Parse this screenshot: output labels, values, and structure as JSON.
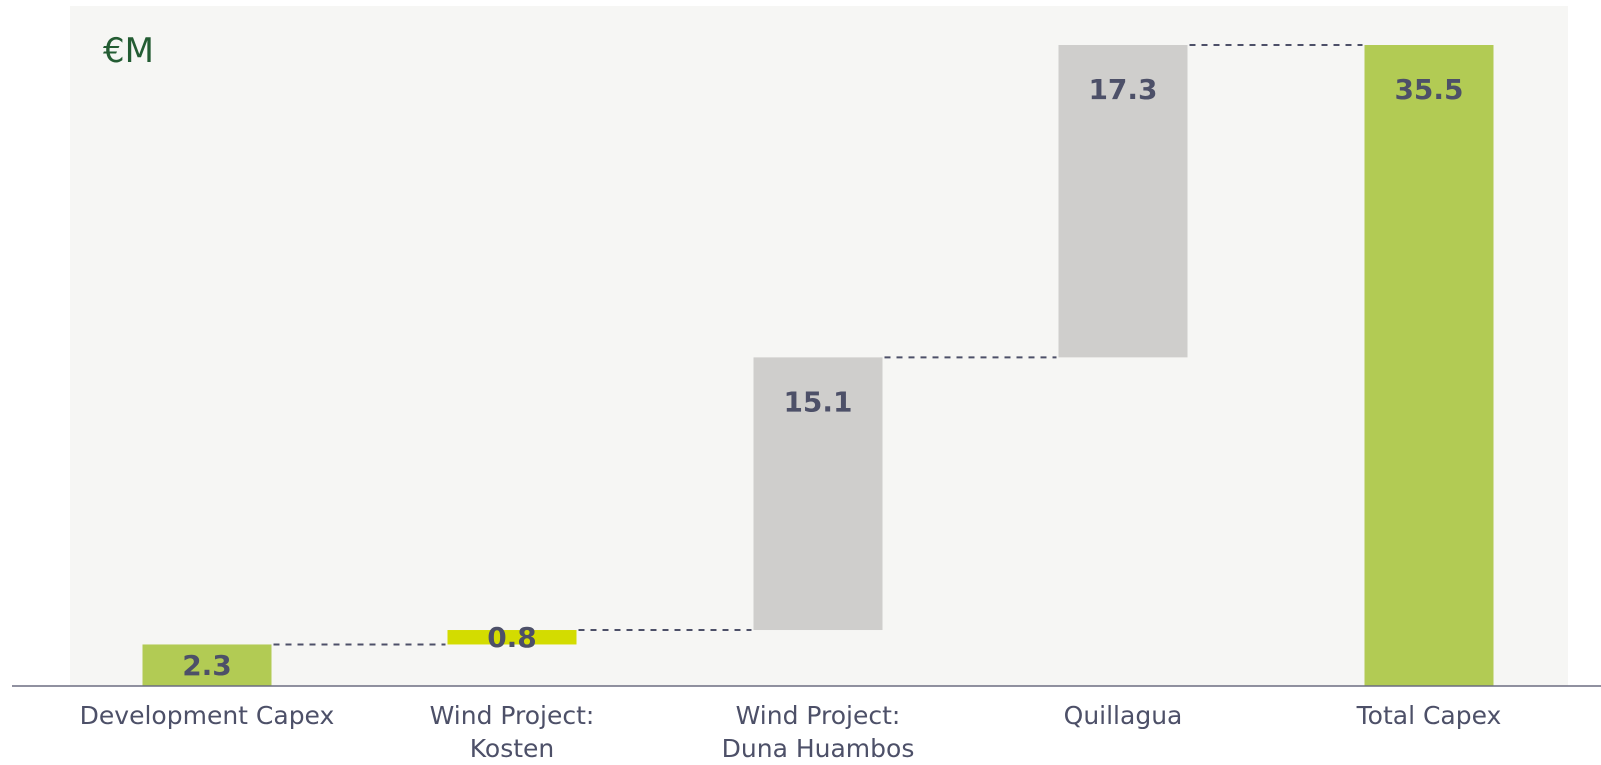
{
  "chart_data": {
    "type": "bar",
    "subtype": "waterfall",
    "title": "",
    "unit_label": "€M",
    "xlabel": "",
    "ylabel": "",
    "ylim": [
      0,
      35.5
    ],
    "grid": false,
    "legend": "none",
    "categories": [
      [
        "Development Capex"
      ],
      [
        "Wind Project:",
        "Kosten"
      ],
      [
        "Wind Project:",
        "Duna Huambos"
      ],
      [
        "Quillagua"
      ],
      [
        "Total Capex"
      ]
    ],
    "values": [
      2.3,
      0.8,
      15.1,
      17.3,
      35.5
    ],
    "value_labels": [
      "2.3",
      "0.8",
      "15.1",
      "17.3",
      "35.5"
    ],
    "bar_kinds": [
      "total",
      "increment",
      "increment",
      "increment",
      "total"
    ],
    "colors": {
      "plot_background": "#f6f6f4",
      "total_bar": "#b2cb54",
      "increment_highlight": "#d3dc00",
      "increment_bar": "#cfcecc",
      "value_text": "#4d5068",
      "category_text": "#4d5068",
      "unit_text": "#235c33",
      "axis": "#6b6d80",
      "connector": "#4d5068"
    },
    "bar_colors": [
      "total_bar",
      "increment_highlight",
      "increment_bar",
      "increment_bar",
      "total_bar"
    ]
  }
}
